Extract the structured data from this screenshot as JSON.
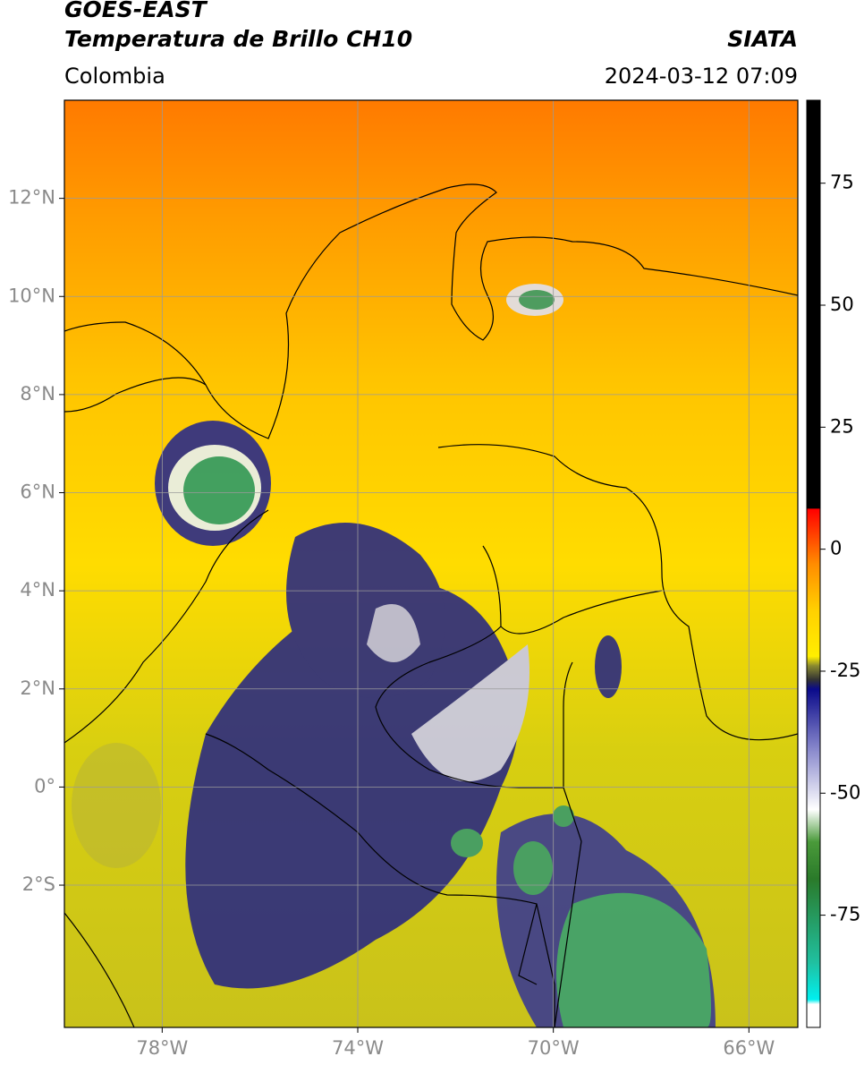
{
  "header": {
    "title": "GOES-EAST",
    "product": "Temperatura de Brillo CH10",
    "source": "SIATA",
    "region": "Colombia",
    "datetime": "2024-03-12 07:09"
  },
  "map": {
    "xlim": [
      -80,
      -65
    ],
    "ylim": [
      -4.9,
      14
    ],
    "xticks": [
      {
        "value": -78,
        "label": "78°W"
      },
      {
        "value": -74,
        "label": "74°W"
      },
      {
        "value": -70,
        "label": "70°W"
      },
      {
        "value": -66,
        "label": "66°W"
      }
    ],
    "yticks": [
      {
        "value": 12,
        "label": "12°N"
      },
      {
        "value": 10,
        "label": "10°N"
      },
      {
        "value": 8,
        "label": "8°N"
      },
      {
        "value": 6,
        "label": "6°N"
      },
      {
        "value": 4,
        "label": "4°N"
      },
      {
        "value": 2,
        "label": "2°N"
      },
      {
        "value": 0,
        "label": "0°"
      },
      {
        "value": -2,
        "label": "2°S"
      }
    ],
    "grid": true,
    "grid_color": "#9a9a9a"
  },
  "colorbar": {
    "lim": [
      -98,
      92
    ],
    "ticks": [
      75,
      50,
      25,
      0,
      -25,
      -50,
      -75
    ]
  }
}
